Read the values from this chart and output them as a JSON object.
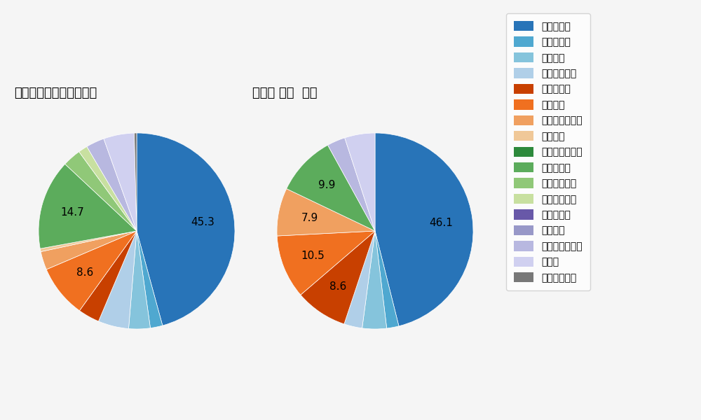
{
  "title1": "パ・リーグ全プレイヤー",
  "title2": "谷川原 健太  選手",
  "background_color": "#f5f5f5",
  "legend_labels": [
    "ストレート",
    "ツーシーム",
    "シュート",
    "カットボール",
    "スプリット",
    "フォーク",
    "チェンジアップ",
    "シンカー",
    "高速スライダー",
    "スライダー",
    "縦スライダー",
    "パワーカーブ",
    "スクリュー",
    "ナックル",
    "ナックルカーブ",
    "カーブ",
    "スローカーブ"
  ],
  "colors": [
    "#2874b8",
    "#4fa8d0",
    "#85c4dc",
    "#b0cfe8",
    "#c84000",
    "#f07020",
    "#f0a060",
    "#f0c898",
    "#2d8a3c",
    "#5cac5c",
    "#90c878",
    "#c8e0a0",
    "#6858a8",
    "#9898c8",
    "#b8b8e0",
    "#d0d0f0",
    "#787878"
  ],
  "pie1_values": [
    45.3,
    2.0,
    3.5,
    5.0,
    3.5,
    8.6,
    3.0,
    0.5,
    0.0,
    14.7,
    3.0,
    1.5,
    0.0,
    0.0,
    3.0,
    5.0,
    0.4
  ],
  "pie1_show_labels": [
    true,
    false,
    false,
    false,
    false,
    true,
    false,
    false,
    false,
    true,
    false,
    false,
    false,
    false,
    false,
    false,
    false
  ],
  "pie1_label_vals": [
    "45.3",
    "",
    "",
    "",
    "",
    "8.6",
    "",
    "",
    "",
    "14.7",
    "",
    "",
    "",
    "",
    "",
    "",
    ""
  ],
  "pie2_values": [
    46.1,
    2.0,
    4.0,
    3.0,
    8.6,
    10.5,
    7.9,
    0.0,
    0.0,
    9.9,
    0.0,
    0.0,
    0.0,
    0.0,
    3.0,
    5.0,
    0.0
  ],
  "pie2_show_labels": [
    true,
    false,
    false,
    false,
    true,
    true,
    true,
    false,
    false,
    true,
    false,
    false,
    false,
    false,
    false,
    false,
    false
  ],
  "pie2_label_vals": [
    "46.1",
    "",
    "",
    "",
    "8.6",
    "10.5",
    "7.9",
    "",
    "",
    "9.9",
    "",
    "",
    "",
    "",
    "",
    "",
    ""
  ],
  "label_fontsize": 11,
  "title_fontsize": 13,
  "legend_fontsize": 10
}
